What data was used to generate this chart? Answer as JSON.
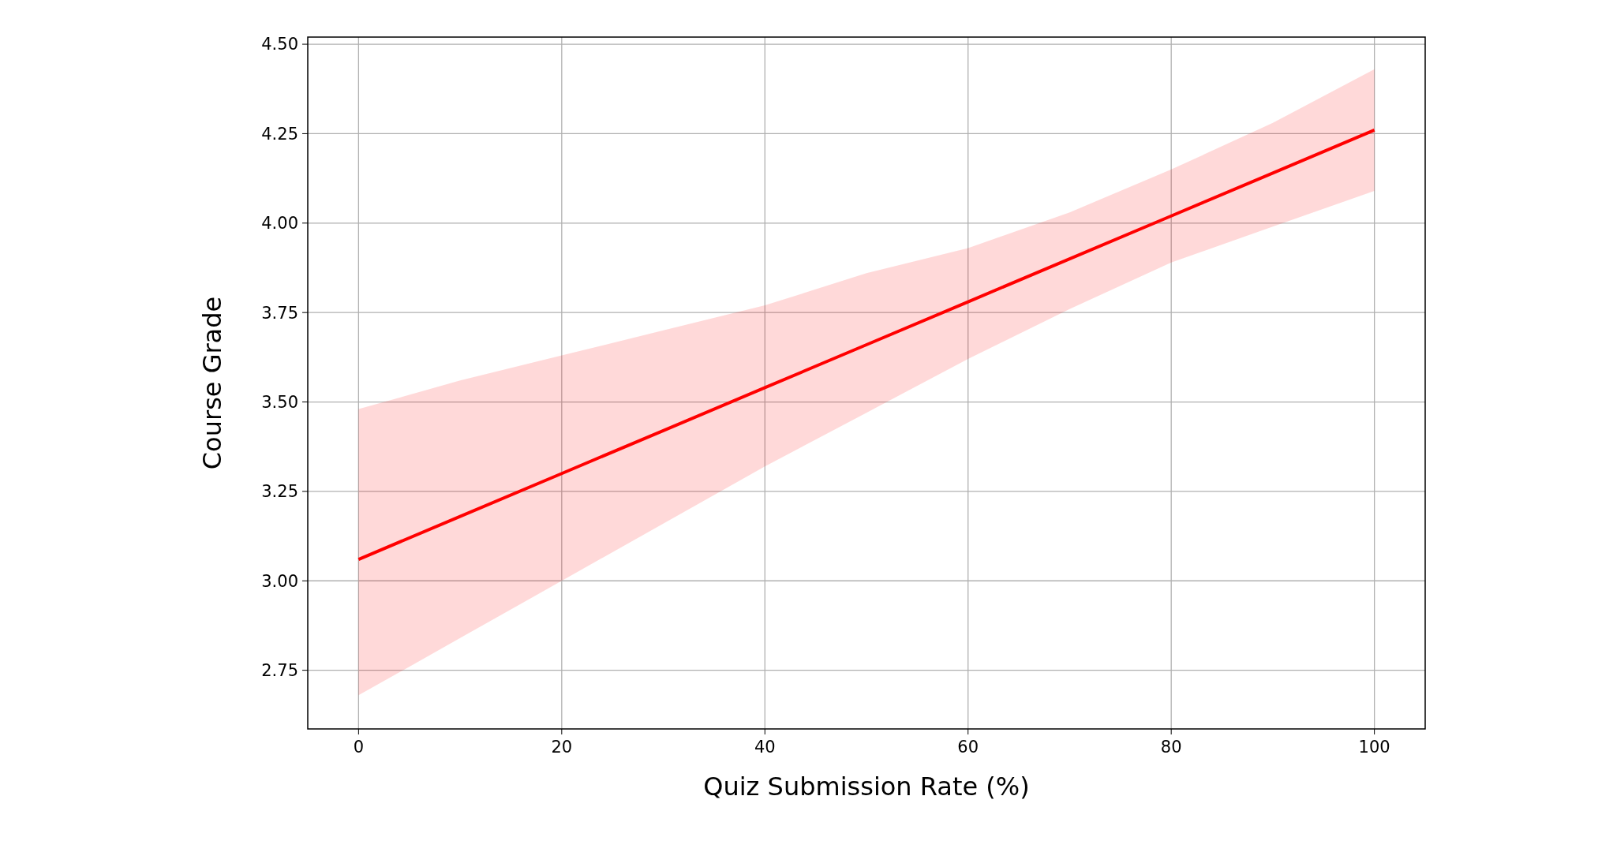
{
  "chart_data": {
    "type": "line",
    "xlabel": "Quiz Submission Rate (%)",
    "ylabel": "Course Grade",
    "xlim": [
      -5,
      105
    ],
    "ylim": [
      2.586,
      4.52
    ],
    "xticks": [
      0,
      20,
      40,
      60,
      80,
      100
    ],
    "yticks": [
      {
        "value": 2.75,
        "label": "2.75"
      },
      {
        "value": 3.0,
        "label": "3.00"
      },
      {
        "value": 3.25,
        "label": "3.25"
      },
      {
        "value": 3.5,
        "label": "3.50"
      },
      {
        "value": 3.75,
        "label": "3.75"
      },
      {
        "value": 4.0,
        "label": "4.00"
      },
      {
        "value": 4.25,
        "label": "4.25"
      },
      {
        "value": 4.5,
        "label": "4.50"
      }
    ],
    "grid": true,
    "marker": "none",
    "line_style": "solid",
    "series": [
      {
        "color": "#ff0000",
        "x": [
          0,
          10,
          20,
          30,
          40,
          50,
          60,
          70,
          80,
          90,
          100
        ],
        "values": [
          3.06,
          3.18,
          3.3,
          3.42,
          3.54,
          3.66,
          3.78,
          3.9,
          4.02,
          4.14,
          4.26
        ],
        "lower": [
          2.68,
          2.84,
          3.0,
          3.16,
          3.32,
          3.47,
          3.62,
          3.76,
          3.89,
          3.99,
          4.09
        ],
        "upper": [
          3.48,
          3.56,
          3.63,
          3.7,
          3.77,
          3.86,
          3.93,
          4.03,
          4.15,
          4.28,
          4.43
        ]
      }
    ]
  }
}
